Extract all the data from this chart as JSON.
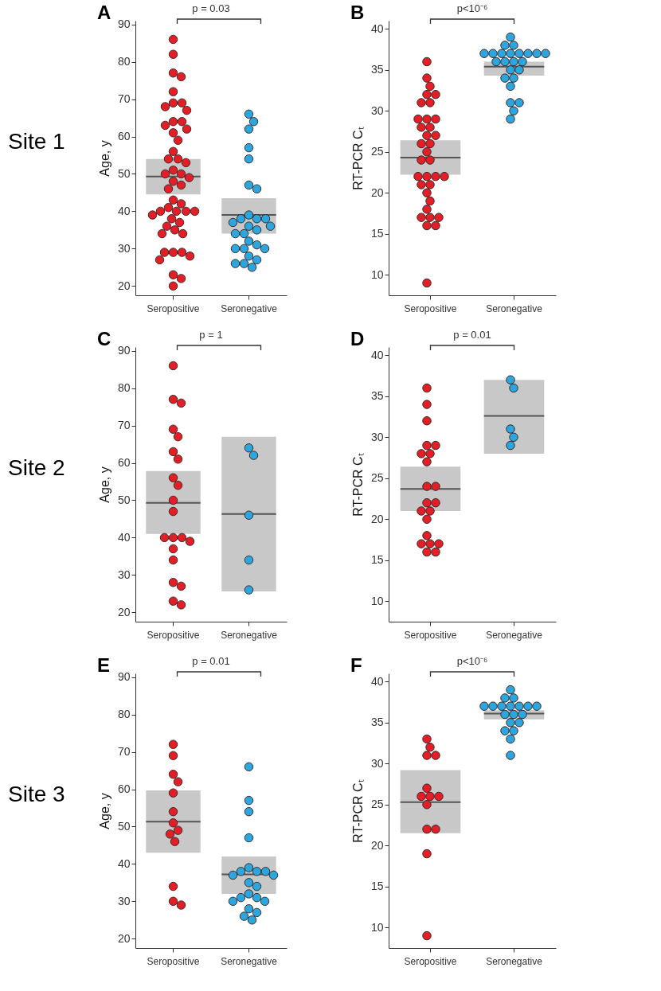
{
  "chart_data": [
    {
      "type": "box",
      "title": "A",
      "ylabel": "Age, y",
      "categories": [
        "Seropositive",
        "Seronegative"
      ],
      "ylim": [
        17.5,
        91
      ],
      "yticks": [
        20,
        30,
        40,
        50,
        60,
        70,
        80,
        90
      ],
      "annotations": [
        "p = 0.03",
        "Site 1"
      ],
      "boxes": [
        {
          "low": 44.5,
          "q1": 44.5,
          "median": 49.3,
          "q3": 54,
          "high": 54
        },
        {
          "low": 34,
          "q1": 34,
          "median": 39,
          "q3": 43.5,
          "high": 43.5
        }
      ],
      "series": [
        {
          "type": "scatter",
          "color": "#e31e26",
          "x": [
            "Seropositive",
            "Seropositive",
            "Seropositive",
            "Seropositive",
            "Seropositive",
            "Seropositive",
            "Seropositive",
            "Seropositive",
            "Seropositive",
            "Seropositive",
            "Seropositive",
            "Seropositive",
            "Seropositive",
            "Seropositive",
            "Seropositive",
            "Seropositive",
            "Seropositive",
            "Seropositive",
            "Seropositive",
            "Seropositive",
            "Seropositive",
            "Seropositive",
            "Seropositive",
            "Seropositive",
            "Seropositive",
            "Seropositive",
            "Seropositive",
            "Seropositive",
            "Seropositive",
            "Seropositive",
            "Seropositive",
            "Seropositive",
            "Seropositive",
            "Seropositive",
            "Seropositive",
            "Seropositive",
            "Seropositive",
            "Seropositive",
            "Seropositive",
            "Seropositive",
            "Seropositive",
            "Seropositive",
            "Seropositive",
            "Seropositive",
            "Seropositive",
            "Seropositive",
            "Seropositive",
            "Seropositive"
          ],
          "values": [
            86,
            82,
            77,
            76,
            72,
            69,
            69,
            68,
            67,
            64,
            64,
            63,
            62,
            61,
            59,
            56,
            54,
            54,
            53,
            51,
            50,
            50,
            49,
            48,
            47,
            46,
            43,
            42,
            41,
            40,
            40,
            40,
            40,
            39,
            38,
            37,
            36,
            35,
            34,
            34,
            29,
            29,
            29,
            28,
            27,
            23,
            22,
            20
          ]
        },
        {
          "type": "scatter",
          "color": "#2ba6de",
          "x": [
            "Seronegative",
            "Seronegative",
            "Seronegative",
            "Seronegative",
            "Seronegative",
            "Seronegative",
            "Seronegative",
            "Seronegative",
            "Seronegative",
            "Seronegative",
            "Seronegative",
            "Seronegative",
            "Seronegative",
            "Seronegative",
            "Seronegative",
            "Seronegative",
            "Seronegative",
            "Seronegative",
            "Seronegative",
            "Seronegative",
            "Seronegative",
            "Seronegative",
            "Seronegative",
            "Seronegative",
            "Seronegative",
            "Seronegative",
            "Seronegative"
          ],
          "values": [
            66,
            64,
            62,
            57,
            54,
            47,
            46,
            39,
            38,
            38,
            38,
            37,
            36,
            36,
            35,
            34,
            34,
            32,
            31,
            30,
            30,
            30,
            28,
            27,
            26,
            26,
            25
          ]
        }
      ]
    },
    {
      "type": "box",
      "title": "B",
      "ylabel": "RT-PCR Cₜ",
      "categories": [
        "Seropositive",
        "Seronegative"
      ],
      "ylim": [
        7.5,
        41
      ],
      "yticks": [
        10,
        15,
        20,
        25,
        30,
        35,
        40
      ],
      "annotations": [
        "p<10⁻⁶"
      ],
      "boxes": [
        {
          "low": 22.2,
          "q1": 22.2,
          "median": 24.3,
          "q3": 26.4,
          "high": 26.4
        },
        {
          "low": 34.3,
          "q1": 34.3,
          "median": 35.4,
          "q3": 36,
          "high": 36
        }
      ],
      "series": [
        {
          "type": "scatter",
          "color": "#e31e26",
          "x": [
            "Seropositive",
            "Seropositive",
            "Seropositive",
            "Seropositive",
            "Seropositive",
            "Seropositive",
            "Seropositive",
            "Seropositive",
            "Seropositive",
            "Seropositive",
            "Seropositive",
            "Seropositive",
            "Seropositive",
            "Seropositive",
            "Seropositive",
            "Seropositive",
            "Seropositive",
            "Seropositive",
            "Seropositive",
            "Seropositive",
            "Seropositive",
            "Seropositive",
            "Seropositive",
            "Seropositive",
            "Seropositive",
            "Seropositive",
            "Seropositive",
            "Seropositive",
            "Seropositive",
            "Seropositive",
            "Seropositive",
            "Seropositive",
            "Seropositive",
            "Seropositive"
          ],
          "values": [
            36,
            34,
            33,
            32,
            32,
            31,
            31,
            29,
            29,
            29,
            28,
            28,
            27,
            27,
            26,
            26,
            25,
            24,
            24,
            22,
            22,
            22,
            22,
            21,
            21,
            20,
            19,
            18,
            17,
            17,
            17,
            16,
            16,
            9
          ]
        },
        {
          "type": "scatter",
          "color": "#2ba6de",
          "x": [
            "Seronegative",
            "Seronegative",
            "Seronegative",
            "Seronegative",
            "Seronegative",
            "Seronegative",
            "Seronegative",
            "Seronegative",
            "Seronegative",
            "Seronegative",
            "Seronegative",
            "Seronegative",
            "Seronegative",
            "Seronegative",
            "Seronegative",
            "Seronegative",
            "Seronegative",
            "Seronegative",
            "Seronegative",
            "Seronegative",
            "Seronegative",
            "Seronegative",
            "Seronegative",
            "Seronegative"
          ],
          "values": [
            39,
            38,
            38,
            37,
            37,
            37,
            37,
            37,
            37,
            37,
            37,
            36,
            36,
            36,
            36,
            35,
            35,
            34,
            34,
            33,
            31,
            31,
            30,
            29
          ]
        }
      ]
    },
    {
      "type": "box",
      "title": "C",
      "ylabel": "Age, y",
      "categories": [
        "Seropositive",
        "Seronegative"
      ],
      "ylim": [
        17.5,
        91
      ],
      "yticks": [
        20,
        30,
        40,
        50,
        60,
        70,
        80,
        90
      ],
      "annotations": [
        "p = 1",
        "Site 2"
      ],
      "boxes": [
        {
          "low": 41,
          "q1": 41,
          "median": 49.3,
          "q3": 57.8,
          "high": 57.8
        },
        {
          "low": 25.6,
          "q1": 25.6,
          "median": 46.3,
          "q3": 67,
          "high": 67
        }
      ],
      "series": [
        {
          "type": "scatter",
          "color": "#e31e26",
          "x": [
            "Seropositive",
            "Seropositive",
            "Seropositive",
            "Seropositive",
            "Seropositive",
            "Seropositive",
            "Seropositive",
            "Seropositive",
            "Seropositive",
            "Seropositive",
            "Seropositive",
            "Seropositive",
            "Seropositive",
            "Seropositive",
            "Seropositive",
            "Seropositive",
            "Seropositive",
            "Seropositive",
            "Seropositive",
            "Seropositive",
            "Seropositive"
          ],
          "values": [
            86,
            77,
            76,
            69,
            67,
            63,
            61,
            56,
            54,
            50,
            47,
            40,
            40,
            40,
            39,
            37,
            34,
            28,
            27,
            23,
            22
          ]
        },
        {
          "type": "scatter",
          "color": "#2ba6de",
          "x": [
            "Seronegative",
            "Seronegative",
            "Seronegative",
            "Seronegative",
            "Seronegative"
          ],
          "values": [
            64,
            62,
            46,
            34,
            26
          ]
        }
      ]
    },
    {
      "type": "box",
      "title": "D",
      "ylabel": "RT-PCR Cₜ",
      "categories": [
        "Seropositive",
        "Seronegative"
      ],
      "ylim": [
        7.5,
        41
      ],
      "yticks": [
        10,
        15,
        20,
        25,
        30,
        35,
        40
      ],
      "annotations": [
        "p = 0.01"
      ],
      "boxes": [
        {
          "low": 21,
          "q1": 21,
          "median": 23.7,
          "q3": 26.4,
          "high": 26.4
        },
        {
          "low": 28,
          "q1": 28,
          "median": 32.6,
          "q3": 37,
          "high": 37
        }
      ],
      "series": [
        {
          "type": "scatter",
          "color": "#e31e26",
          "x": [
            "Seropositive",
            "Seropositive",
            "Seropositive",
            "Seropositive",
            "Seropositive",
            "Seropositive",
            "Seropositive",
            "Seropositive",
            "Seropositive",
            "Seropositive",
            "Seropositive",
            "Seropositive",
            "Seropositive",
            "Seropositive",
            "Seropositive",
            "Seropositive",
            "Seropositive",
            "Seropositive",
            "Seropositive",
            "Seropositive",
            "Seropositive"
          ],
          "values": [
            36,
            34,
            32,
            29,
            29,
            28,
            28,
            27,
            24,
            24,
            22,
            22,
            21,
            21,
            20,
            18,
            17,
            17,
            17,
            16,
            16
          ]
        },
        {
          "type": "scatter",
          "color": "#2ba6de",
          "x": [
            "Seronegative",
            "Seronegative",
            "Seronegative",
            "Seronegative",
            "Seronegative"
          ],
          "values": [
            37,
            36,
            31,
            30,
            29
          ]
        }
      ]
    },
    {
      "type": "box",
      "title": "E",
      "ylabel": "Age, y",
      "categories": [
        "Seropositive",
        "Seronegative"
      ],
      "ylim": [
        17.5,
        91
      ],
      "yticks": [
        20,
        30,
        40,
        50,
        60,
        70,
        80,
        90
      ],
      "annotations": [
        "p = 0.01",
        "Site 3"
      ],
      "boxes": [
        {
          "low": 43,
          "q1": 43,
          "median": 51.3,
          "q3": 59.7,
          "high": 59.7
        },
        {
          "low": 32,
          "q1": 32,
          "median": 37.2,
          "q3": 42,
          "high": 42
        }
      ],
      "series": [
        {
          "type": "scatter",
          "color": "#e31e26",
          "x": [
            "Seropositive",
            "Seropositive",
            "Seropositive",
            "Seropositive",
            "Seropositive",
            "Seropositive",
            "Seropositive",
            "Seropositive",
            "Seropositive",
            "Seropositive",
            "Seropositive",
            "Seropositive",
            "Seropositive"
          ],
          "values": [
            72,
            69,
            64,
            62,
            59,
            54,
            51,
            49,
            48,
            46,
            34,
            30,
            29
          ]
        },
        {
          "type": "scatter",
          "color": "#2ba6de",
          "x": [
            "Seronegative",
            "Seronegative",
            "Seronegative",
            "Seronegative",
            "Seronegative",
            "Seronegative",
            "Seronegative",
            "Seronegative",
            "Seronegative",
            "Seronegative",
            "Seronegative",
            "Seronegative",
            "Seronegative",
            "Seronegative",
            "Seronegative",
            "Seronegative",
            "Seronegative",
            "Seronegative",
            "Seronegative",
            "Seronegative",
            "Seronegative"
          ],
          "values": [
            66,
            57,
            54,
            47,
            39,
            38,
            38,
            38,
            37,
            37,
            35,
            34,
            32,
            31,
            31,
            30,
            30,
            28,
            27,
            26,
            25
          ]
        }
      ]
    },
    {
      "type": "box",
      "title": "F",
      "ylabel": "RT-PCR Cₜ",
      "categories": [
        "Seropositive",
        "Seronegative"
      ],
      "ylim": [
        7.5,
        41
      ],
      "yticks": [
        10,
        15,
        20,
        25,
        30,
        35,
        40
      ],
      "annotations": [
        "p<10⁻⁶"
      ],
      "boxes": [
        {
          "low": 21.5,
          "q1": 21.5,
          "median": 25.3,
          "q3": 29.2,
          "high": 29.2
        },
        {
          "low": 35.4,
          "q1": 35.4,
          "median": 36.1,
          "q3": 36.5,
          "high": 36.5
        }
      ],
      "series": [
        {
          "type": "scatter",
          "color": "#e31e26",
          "x": [
            "Seropositive",
            "Seropositive",
            "Seropositive",
            "Seropositive",
            "Seropositive",
            "Seropositive",
            "Seropositive",
            "Seropositive",
            "Seropositive",
            "Seropositive",
            "Seropositive",
            "Seropositive",
            "Seropositive"
          ],
          "values": [
            33,
            32,
            31,
            31,
            27,
            26,
            26,
            26,
            25,
            22,
            22,
            19,
            9
          ]
        },
        {
          "type": "scatter",
          "color": "#2ba6de",
          "x": [
            "Seronegative",
            "Seronegative",
            "Seronegative",
            "Seronegative",
            "Seronegative",
            "Seronegative",
            "Seronegative",
            "Seronegative",
            "Seronegative",
            "Seronegative",
            "Seronegative",
            "Seronegative",
            "Seronegative",
            "Seronegative",
            "Seronegative",
            "Seronegative",
            "Seronegative",
            "Seronegative",
            "Seronegative"
          ],
          "values": [
            39,
            38,
            38,
            37,
            37,
            37,
            37,
            37,
            37,
            37,
            36,
            36,
            36,
            35,
            35,
            34,
            34,
            33,
            31
          ]
        }
      ]
    }
  ]
}
